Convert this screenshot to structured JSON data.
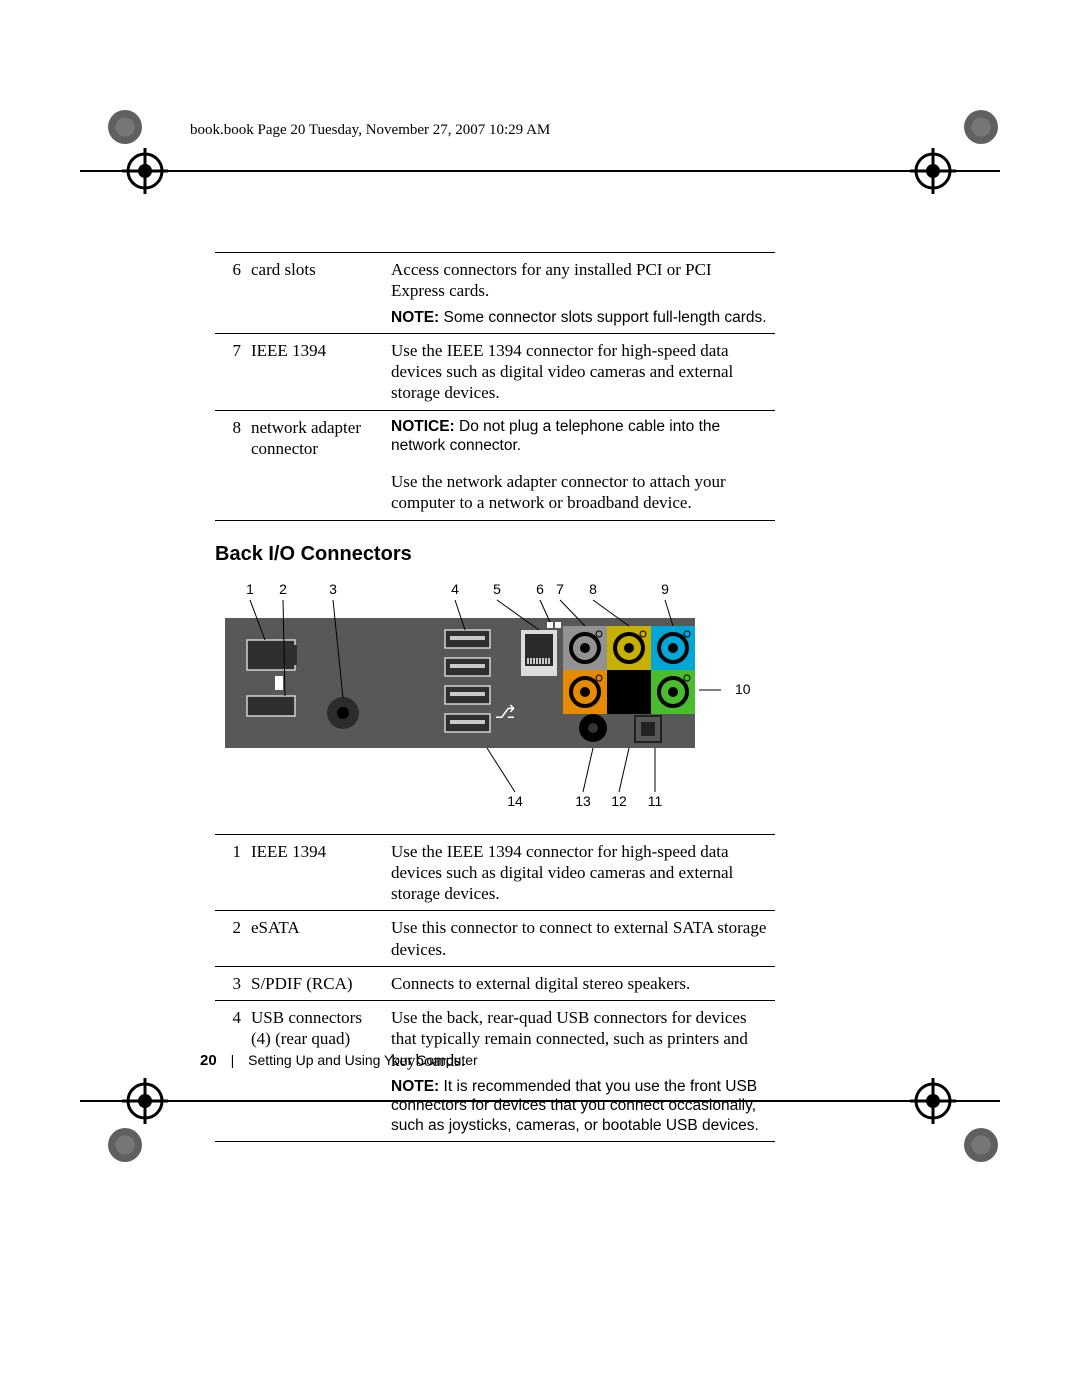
{
  "header": {
    "text": "book.book  Page 20  Tuesday, November 27, 2007  10:29 AM"
  },
  "top_table": {
    "rows": [
      {
        "num": "6",
        "label": "card slots",
        "desc": "Access connectors for any installed PCI or PCI Express cards.",
        "note_prefix": "NOTE: ",
        "note": "Some connector slots support full-length cards."
      },
      {
        "num": "7",
        "label": "IEEE 1394",
        "desc": "Use the IEEE 1394 connector for high-speed data devices such as digital video cameras and external storage devices."
      },
      {
        "num": "8",
        "label": "network adapter connector",
        "notice_prefix": "NOTICE: ",
        "notice": "Do not plug a telephone cable into the network connector.",
        "desc": "Use the network adapter connector to attach your computer to a network or broadband device."
      }
    ]
  },
  "section_heading": "Back I/O Connectors",
  "diagram": {
    "callout_labels_top": {
      "1": "1",
      "2": "2",
      "3": "3",
      "4": "4",
      "5": "5",
      "6": "6",
      "7": "7",
      "8": "8",
      "9": "9"
    },
    "callout_labels_right": {
      "10": "10"
    },
    "callout_labels_bottom": {
      "11": "11",
      "12": "12",
      "13": "13",
      "14": "14"
    },
    "panel_bg": "#585858",
    "port_fill": "#2f2f2f",
    "port_stroke": "#d3d3d3",
    "audio_colors": {
      "top_left": "#929292",
      "top_mid": "#c7b000",
      "top_right": "#00a7d6",
      "bot_left": "#e68a00",
      "bot_mid": "#000000",
      "bot_right": "#49bd2c"
    }
  },
  "bottom_table": {
    "rows": [
      {
        "num": "1",
        "label": "IEEE 1394",
        "desc": "Use the IEEE 1394 connector for high-speed data devices such as digital video cameras and external storage devices."
      },
      {
        "num": "2",
        "label": "eSATA",
        "desc": "Use this connector to connect to external SATA storage devices."
      },
      {
        "num": "3",
        "label": "S/PDIF (RCA)",
        "desc": "Connects to external digital stereo speakers."
      },
      {
        "num": "4",
        "label": "USB connectors (4) (rear quad)",
        "desc": "Use the back, rear-quad USB connectors for devices that typically remain connected, such as printers and keyboards.",
        "note_prefix": "NOTE: ",
        "note": "It is recommended that you use the front USB connectors for devices that you connect occasionally, such as joysticks, cameras, or bootable USB devices."
      }
    ]
  },
  "footer": {
    "page_number": "20",
    "section": "Setting Up and Using Your Computer"
  }
}
